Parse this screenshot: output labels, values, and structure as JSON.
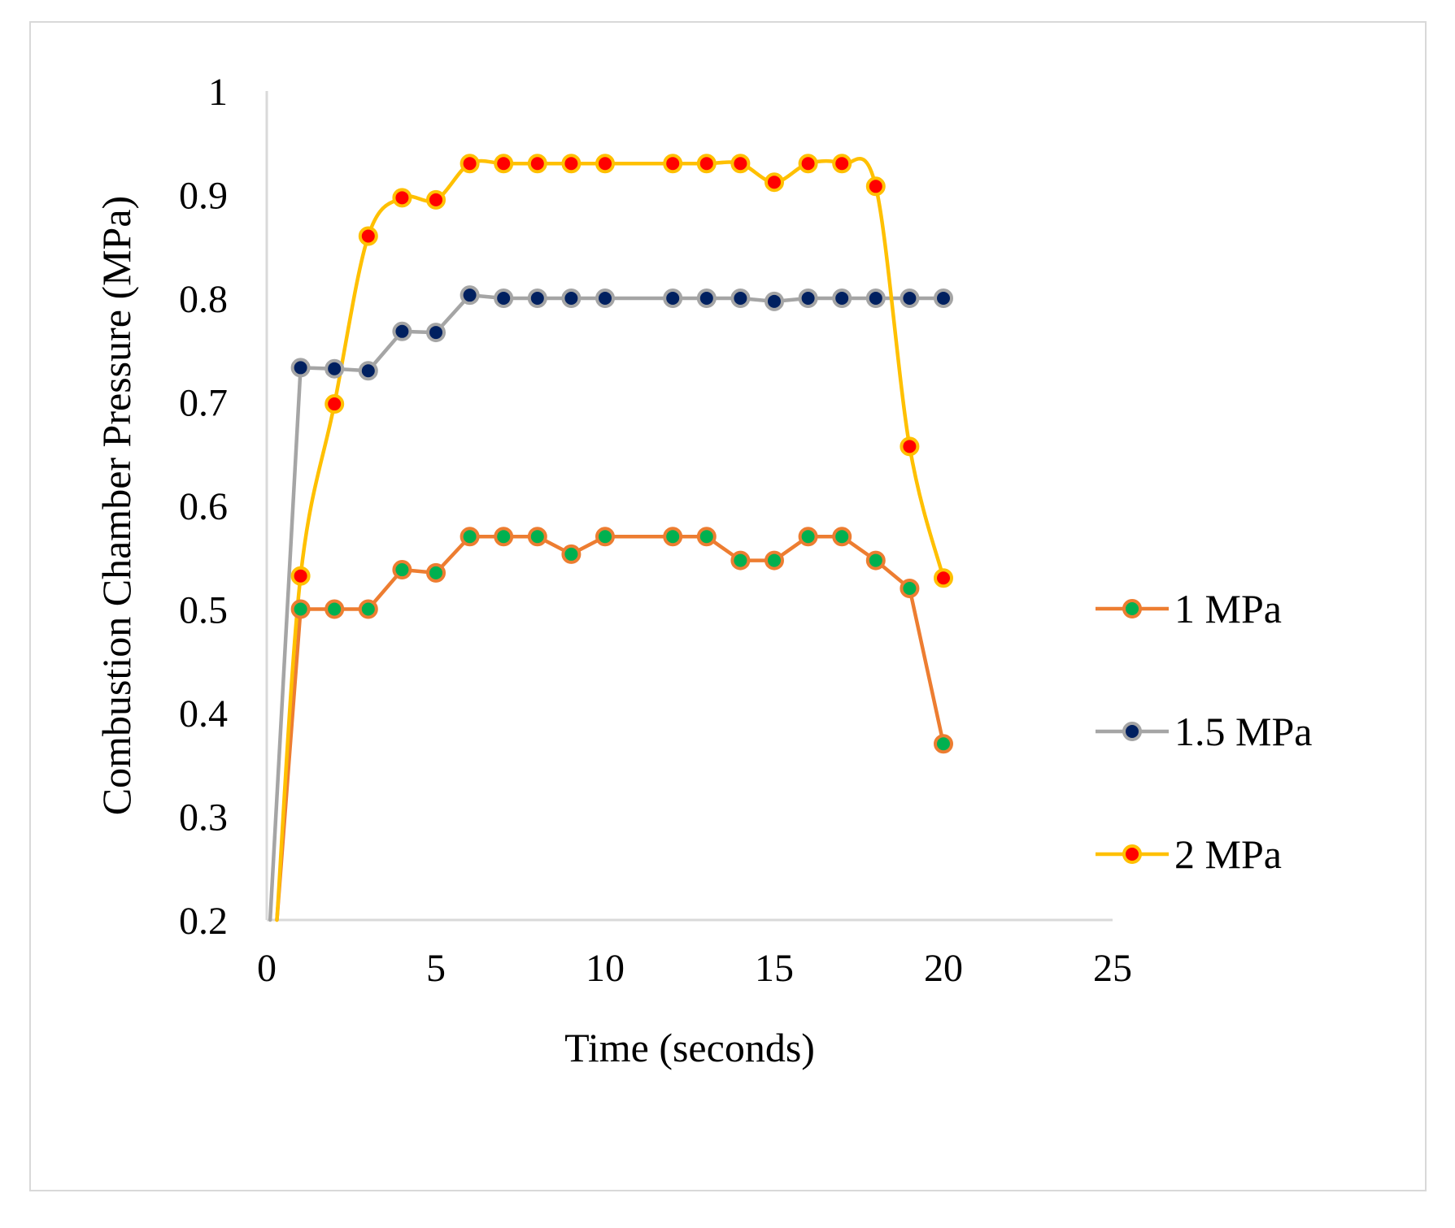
{
  "chart_data": {
    "type": "line",
    "title": "",
    "xlabel": "Time (seconds)",
    "ylabel": "Combustion Chamber Pressure (MPa)",
    "xlim": [
      0,
      25
    ],
    "ylim": [
      0.2,
      1
    ],
    "xticks": [
      0,
      5,
      10,
      15,
      20,
      25
    ],
    "yticks": [
      0.2,
      0.3,
      0.4,
      0.5,
      0.6,
      0.7,
      0.8,
      0.9,
      1
    ],
    "xtick_labels": [
      "0",
      "5",
      "10",
      "15",
      "20",
      "25"
    ],
    "ytick_labels": [
      "0.2",
      "0.3",
      "0.4",
      "0.5",
      "0.6",
      "0.7",
      "0.8",
      "0.9",
      "1"
    ],
    "grid": false,
    "legend_position": "right",
    "series": [
      {
        "name": "1 MPa",
        "line_color": "#ed7d31",
        "marker_fill": "#00b050",
        "smooth": false,
        "x": [
          0.3,
          1,
          2,
          3,
          4,
          5,
          6,
          7,
          8,
          9,
          10,
          12,
          13,
          14,
          15,
          16,
          17,
          18,
          19,
          20
        ],
        "y": [
          0.2,
          0.5,
          0.5,
          0.5,
          0.538,
          0.535,
          0.57,
          0.57,
          0.57,
          0.553,
          0.57,
          0.57,
          0.57,
          0.547,
          0.547,
          0.57,
          0.57,
          0.547,
          0.52,
          0.37
        ]
      },
      {
        "name": "1.5 MPa",
        "line_color": "#a5a5a5",
        "marker_fill": "#002060",
        "smooth": false,
        "x": [
          0.1,
          1,
          2,
          3,
          4,
          5,
          6,
          7,
          8,
          9,
          10,
          12,
          13,
          14,
          15,
          16,
          17,
          18,
          19,
          20
        ],
        "y": [
          0.2,
          0.733,
          0.732,
          0.73,
          0.768,
          0.767,
          0.803,
          0.8,
          0.8,
          0.8,
          0.8,
          0.8,
          0.8,
          0.8,
          0.797,
          0.8,
          0.8,
          0.8,
          0.8,
          0.8
        ]
      },
      {
        "name": "2 MPa",
        "line_color": "#ffc000",
        "marker_fill": "#ff0000",
        "smooth": true,
        "x": [
          0.3,
          1,
          2,
          3,
          4,
          5,
          6,
          7,
          8,
          9,
          10,
          12,
          13,
          14,
          15,
          16,
          17,
          18,
          19,
          20
        ],
        "y": [
          0.2,
          0.532,
          0.698,
          0.86,
          0.897,
          0.895,
          0.93,
          0.93,
          0.93,
          0.93,
          0.93,
          0.93,
          0.93,
          0.93,
          0.912,
          0.93,
          0.93,
          0.908,
          0.657,
          0.53
        ]
      }
    ]
  }
}
